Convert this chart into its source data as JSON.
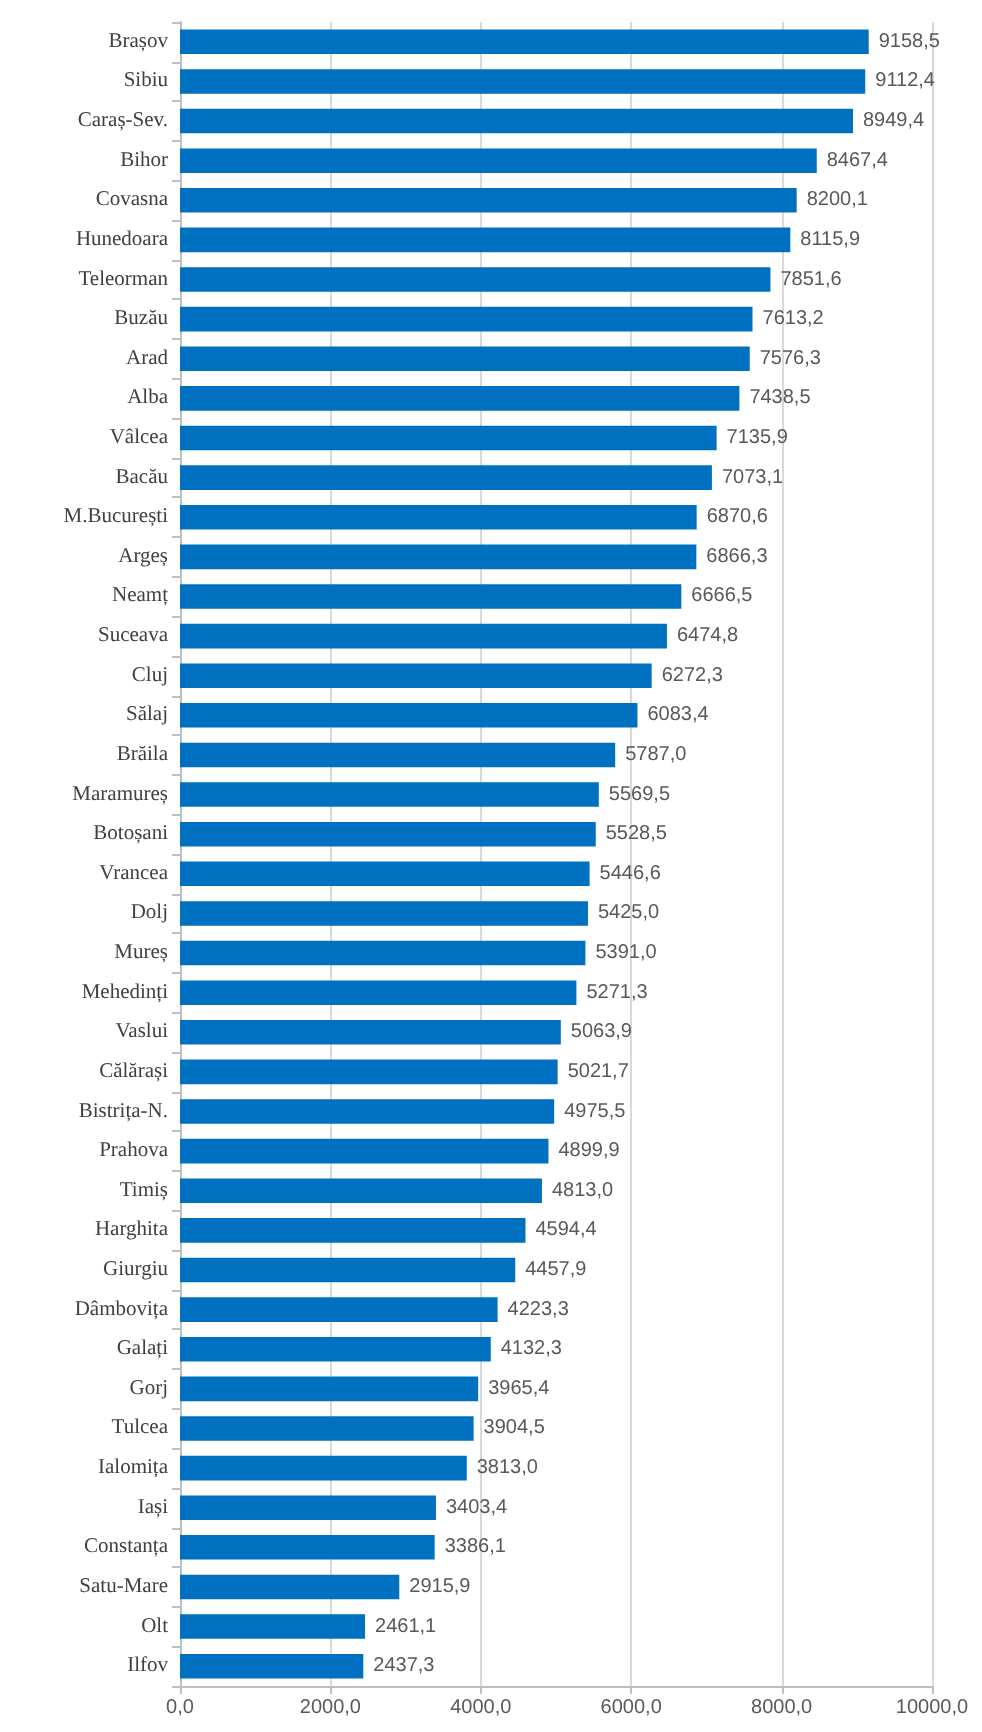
{
  "chart_data": {
    "type": "bar",
    "orientation": "horizontal",
    "color": "#0070c0",
    "categories": [
      "Brașov",
      "Sibiu",
      "Caraș-Sev.",
      "Bihor",
      "Covasna",
      "Hunedoara",
      "Teleorman",
      "Buzău",
      "Arad",
      "Alba",
      "Vâlcea",
      "Bacău",
      "M.București",
      "Argeș",
      "Neamț",
      "Suceava",
      "Cluj",
      "Sălaj",
      "Brăila",
      "Maramureș",
      "Botoșani",
      "Vrancea",
      "Dolj",
      "Mureș",
      "Mehedinți",
      "Vaslui",
      "Călărași",
      "Bistrița-N.",
      "Prahova",
      "Timiș",
      "Harghita",
      "Giurgiu",
      "Dâmbovița",
      "Galați",
      "Gorj",
      "Tulcea",
      "Ialomița",
      "Iași",
      "Constanța",
      "Satu-Mare",
      "Olt",
      "Ilfov"
    ],
    "values": [
      9158.5,
      9112.4,
      8949.4,
      8467.4,
      8200.1,
      8115.9,
      7851.6,
      7613.2,
      7576.3,
      7438.5,
      7135.9,
      7073.1,
      6870.6,
      6866.3,
      6666.5,
      6474.8,
      6272.3,
      6083.4,
      5787.0,
      5569.5,
      5528.5,
      5446.6,
      5425.0,
      5391.0,
      5271.3,
      5063.9,
      5021.7,
      4975.5,
      4899.9,
      4813.0,
      4594.4,
      4457.9,
      4223.3,
      4132.3,
      3965.4,
      3904.5,
      3813.0,
      3403.4,
      3386.1,
      2915.9,
      2461.1,
      2437.3
    ],
    "value_labels": [
      "9158,5",
      "9112,4",
      "8949,4",
      "8467,4",
      "8200,1",
      "8115,9",
      "7851,6",
      "7613,2",
      "7576,3",
      "7438,5",
      "7135,9",
      "7073,1",
      "6870,6",
      "6866,3",
      "6666,5",
      "6474,8",
      "6272,3",
      "6083,4",
      "5787,0",
      "5569,5",
      "5528,5",
      "5446,6",
      "5425,0",
      "5391,0",
      "5271,3",
      "5063,9",
      "5021,7",
      "4975,5",
      "4899,9",
      "4813,0",
      "4594,4",
      "4457,9",
      "4223,3",
      "4132,3",
      "3965,4",
      "3904,5",
      "3813,0",
      "3403,4",
      "3386,1",
      "2915,9",
      "2461,1",
      "2437,3"
    ],
    "xlim": [
      0,
      10000
    ],
    "xticks": [
      {
        "value": 0,
        "label": "0,0"
      },
      {
        "value": 2000,
        "label": "2000,0"
      },
      {
        "value": 4000,
        "label": "4000,0"
      },
      {
        "value": 6000,
        "label": "6000,0"
      },
      {
        "value": 8000,
        "label": "8000,0"
      },
      {
        "value": 10000,
        "label": "10000,0"
      }
    ],
    "grid": "x"
  }
}
